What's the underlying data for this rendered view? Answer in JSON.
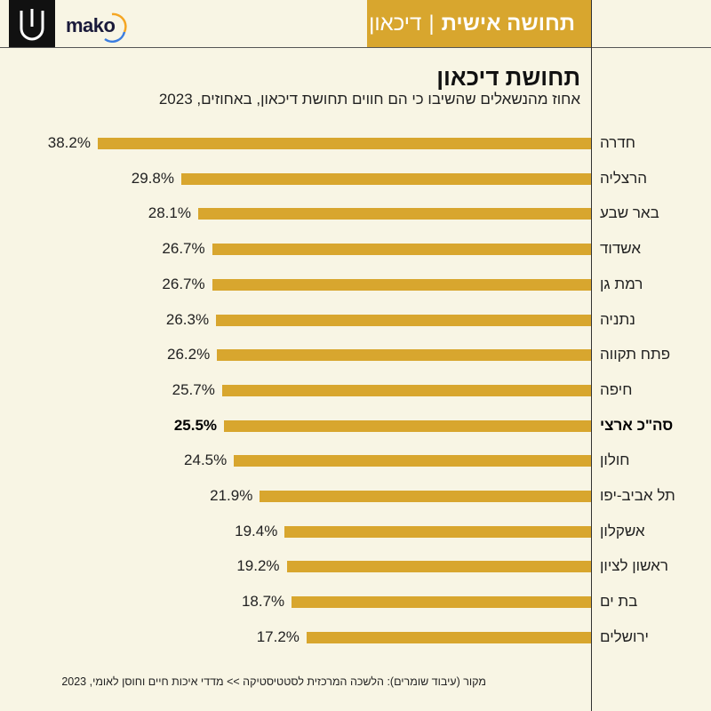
{
  "header": {
    "brand": "mako",
    "section": "תחושה אישית",
    "separator": "|",
    "topic": "דיכאון"
  },
  "chart_data": {
    "type": "bar",
    "orientation": "horizontal",
    "title": "תחושת דיכאון",
    "subtitle": "אחוז מהנשאלים שהשיבו כי הם חווים תחושת דיכאון, באחוזים, 2023",
    "unit": "%",
    "categories": [
      "חדרה",
      "הרצליה",
      "באר שבע",
      "אשדוד",
      "רמת גן",
      "נתניה",
      "פתח תקווה",
      "חיפה",
      "סה\"כ ארצי",
      "חולון",
      "תל אביב-יפו",
      "אשקלון",
      "ראשון לציון",
      "בת ים",
      "ירושלים"
    ],
    "values": [
      38.2,
      29.8,
      28.1,
      26.7,
      26.7,
      26.3,
      26.2,
      25.7,
      25.5,
      24.5,
      21.9,
      19.4,
      19.2,
      18.7,
      17.2
    ],
    "labels": [
      "38.2%",
      "29.8%",
      "28.1%",
      "26.7%",
      "26.7%",
      "26.3%",
      "26.2%",
      "25.7%",
      "25.5%",
      "24.5%",
      "21.9%",
      "19.4%",
      "19.2%",
      "18.7%",
      "17.2%"
    ],
    "highlight_index": 8,
    "bar_color": "#d8a62e"
  },
  "footer": {
    "source": "מקור (עיבוד שומרים): הלשכה המרכזית לסטטיסטיקה >> מדדי איכות חיים וחוסן לאומי, 2023"
  }
}
